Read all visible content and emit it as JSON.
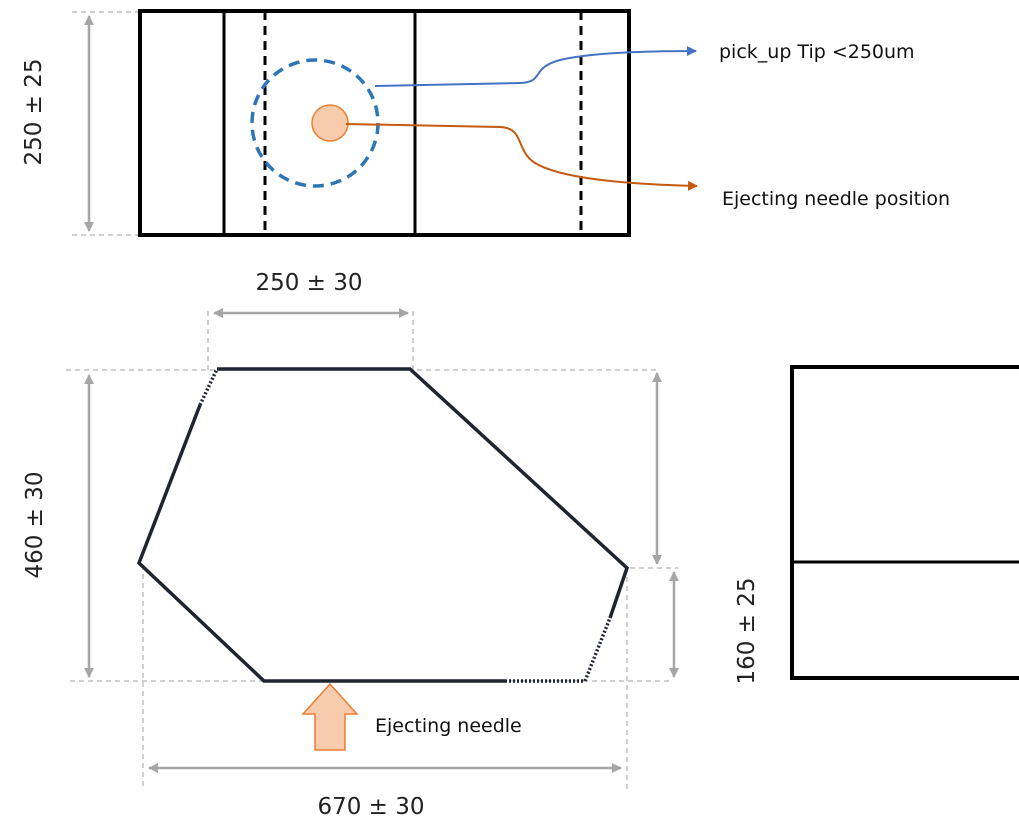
{
  "top_view": {
    "height_dim": "250 ± 25",
    "callout_tip": "pick_up Tip <250um",
    "callout_needle": "Ejecting needle position"
  },
  "hexagon": {
    "top_dim": "250 ± 30",
    "height_dim": "460 ± 30",
    "width_dim": "670 ± 30",
    "needle_label": "Ejecting needle"
  },
  "side_view": {
    "height_dim": "160 ± 25"
  },
  "colors": {
    "blue": "#2e75b6",
    "orange": "#c55a11",
    "needle_fill": "#f8cbad",
    "needle_stroke": "#ed7d31",
    "dimension_gray": "#a6a6a6"
  }
}
